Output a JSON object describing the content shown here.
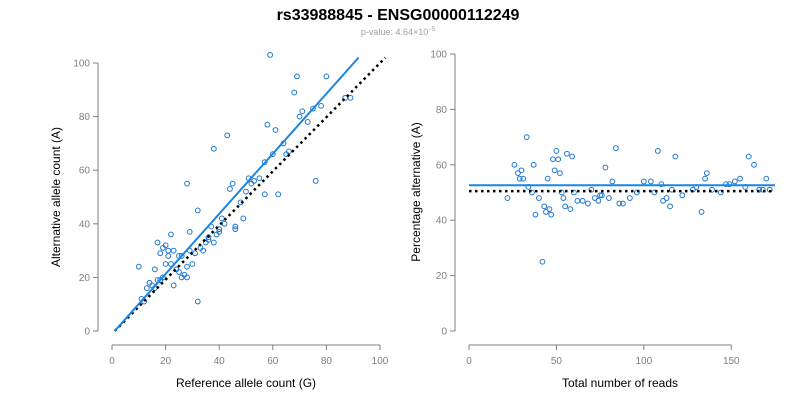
{
  "title": "rs33988845 - ENSG00000112249",
  "subtitle": {
    "prefix": "p-value: 4.64×10",
    "exponent": "−5"
  },
  "colors": {
    "points": "#1f77d0",
    "fit": "#1a86e0",
    "reference": "#000000",
    "axis": "#7f7f7f"
  },
  "chart_data": [
    {
      "type": "scatter",
      "xlabel": "Reference allele count (G)",
      "ylabel": "Alternative allele count (A)",
      "xlim": [
        0,
        100
      ],
      "ylim": [
        0,
        100
      ],
      "xticks": [
        0,
        20,
        40,
        60,
        80,
        100
      ],
      "yticks": [
        0,
        20,
        40,
        60,
        80,
        100
      ],
      "grid": false,
      "points": [
        [
          10,
          24
        ],
        [
          11,
          12
        ],
        [
          12,
          11
        ],
        [
          13,
          16
        ],
        [
          14,
          18
        ],
        [
          15,
          17
        ],
        [
          16,
          16
        ],
        [
          16,
          23
        ],
        [
          17,
          19
        ],
        [
          17,
          33
        ],
        [
          18,
          19
        ],
        [
          18,
          29
        ],
        [
          19,
          31
        ],
        [
          19,
          20
        ],
        [
          20,
          32
        ],
        [
          20,
          25
        ],
        [
          21,
          28
        ],
        [
          21,
          30
        ],
        [
          22,
          25
        ],
        [
          22,
          36
        ],
        [
          23,
          17
        ],
        [
          23,
          30
        ],
        [
          24,
          23
        ],
        [
          25,
          22
        ],
        [
          25,
          28
        ],
        [
          26,
          20
        ],
        [
          26,
          28
        ],
        [
          27,
          21
        ],
        [
          28,
          20
        ],
        [
          28,
          24
        ],
        [
          28,
          55
        ],
        [
          29,
          30
        ],
        [
          29,
          37
        ],
        [
          30,
          25
        ],
        [
          31,
          29
        ],
        [
          32,
          11
        ],
        [
          32,
          45
        ],
        [
          33,
          31
        ],
        [
          34,
          30
        ],
        [
          35,
          33
        ],
        [
          36,
          35
        ],
        [
          36,
          34
        ],
        [
          37,
          39
        ],
        [
          38,
          33
        ],
        [
          38,
          68
        ],
        [
          39,
          36
        ],
        [
          40,
          37
        ],
        [
          40,
          38
        ],
        [
          41,
          42
        ],
        [
          42,
          40
        ],
        [
          43,
          73
        ],
        [
          44,
          53
        ],
        [
          45,
          55
        ],
        [
          46,
          38
        ],
        [
          46,
          39
        ],
        [
          48,
          48
        ],
        [
          49,
          42
        ],
        [
          50,
          52
        ],
        [
          51,
          57
        ],
        [
          52,
          55
        ],
        [
          53,
          56
        ],
        [
          55,
          57
        ],
        [
          57,
          51
        ],
        [
          57,
          63
        ],
        [
          58,
          77
        ],
        [
          59,
          103
        ],
        [
          60,
          66
        ],
        [
          61,
          75
        ],
        [
          62,
          51
        ],
        [
          64,
          70
        ],
        [
          65,
          66
        ],
        [
          66,
          67
        ],
        [
          68,
          89
        ],
        [
          69,
          95
        ],
        [
          70,
          80
        ],
        [
          71,
          82
        ],
        [
          73,
          78
        ],
        [
          75,
          83
        ],
        [
          76,
          56
        ],
        [
          78,
          84
        ],
        [
          80,
          95
        ],
        [
          87,
          87
        ],
        [
          89,
          87
        ]
      ],
      "fit_line": {
        "x": [
          1,
          92
        ],
        "y": [
          0,
          102
        ]
      },
      "reference_line": {
        "x": [
          1,
          102
        ],
        "y": [
          0,
          102
        ]
      }
    },
    {
      "type": "scatter",
      "xlabel": "Total number of reads",
      "ylabel": "Percentage alternative (A)",
      "xlim": [
        0,
        175
      ],
      "ylim": [
        0,
        100
      ],
      "xticks": [
        0,
        50,
        100,
        150
      ],
      "yticks": [
        0,
        20,
        40,
        60,
        80,
        100
      ],
      "grid": false,
      "points": [
        [
          22,
          48
        ],
        [
          26,
          60
        ],
        [
          28,
          57
        ],
        [
          29,
          55
        ],
        [
          30,
          58
        ],
        [
          31,
          55
        ],
        [
          33,
          70
        ],
        [
          34,
          52
        ],
        [
          36,
          50
        ],
        [
          37,
          60
        ],
        [
          38,
          42
        ],
        [
          40,
          48
        ],
        [
          42,
          25
        ],
        [
          43,
          45
        ],
        [
          44,
          43
        ],
        [
          45,
          55
        ],
        [
          46,
          44
        ],
        [
          47,
          42
        ],
        [
          48,
          62
        ],
        [
          49,
          58
        ],
        [
          50,
          65
        ],
        [
          51,
          62
        ],
        [
          52,
          57
        ],
        [
          53,
          50
        ],
        [
          54,
          48
        ],
        [
          55,
          45
        ],
        [
          56,
          64
        ],
        [
          58,
          44
        ],
        [
          59,
          63
        ],
        [
          60,
          50
        ],
        [
          62,
          47
        ],
        [
          65,
          47
        ],
        [
          68,
          46
        ],
        [
          70,
          51
        ],
        [
          72,
          48
        ],
        [
          74,
          47
        ],
        [
          75,
          49
        ],
        [
          76,
          49
        ],
        [
          78,
          59
        ],
        [
          80,
          48
        ],
        [
          82,
          54
        ],
        [
          84,
          66
        ],
        [
          86,
          46
        ],
        [
          88,
          46
        ],
        [
          92,
          48
        ],
        [
          96,
          50
        ],
        [
          100,
          54
        ],
        [
          104,
          54
        ],
        [
          106,
          50
        ],
        [
          108,
          65
        ],
        [
          110,
          53
        ],
        [
          111,
          47
        ],
        [
          113,
          48
        ],
        [
          115,
          45
        ],
        [
          116,
          51
        ],
        [
          118,
          63
        ],
        [
          122,
          49
        ],
        [
          128,
          51
        ],
        [
          130,
          52
        ],
        [
          133,
          43
        ],
        [
          135,
          55
        ],
        [
          136,
          57
        ],
        [
          139,
          51
        ],
        [
          144,
          50
        ],
        [
          147,
          53
        ],
        [
          149,
          53
        ],
        [
          152,
          54
        ],
        [
          155,
          55
        ],
        [
          158,
          52
        ],
        [
          160,
          63
        ],
        [
          163,
          60
        ],
        [
          166,
          51
        ],
        [
          168,
          51
        ],
        [
          170,
          55
        ],
        [
          172,
          51
        ]
      ],
      "fit_line": {
        "x": [
          0,
          175
        ],
        "y": [
          52.6,
          52.6
        ]
      },
      "reference_line": {
        "x": [
          0,
          175
        ],
        "y": [
          50.5,
          50.5
        ]
      }
    }
  ]
}
